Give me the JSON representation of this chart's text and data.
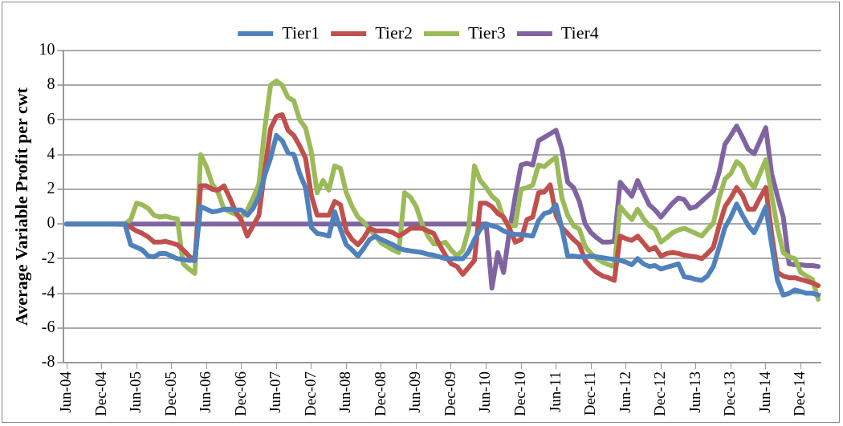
{
  "chart_data": {
    "type": "line",
    "ylabel": "Average Variable Profit per cwt",
    "legend": "top",
    "grid": "y",
    "marker": "none",
    "line_style": "solid",
    "ylim": [
      -8,
      10
    ],
    "yticks": [
      -8,
      -6,
      -4,
      -2,
      0,
      2,
      4,
      6,
      8,
      10
    ],
    "categories": [
      "Jun-04",
      null,
      null,
      null,
      null,
      null,
      "Dec-04",
      null,
      null,
      null,
      null,
      null,
      "Jun-05",
      null,
      null,
      null,
      null,
      null,
      "Dec-05",
      null,
      null,
      null,
      null,
      null,
      "Jun-06",
      null,
      null,
      null,
      null,
      null,
      "Dec-06",
      null,
      null,
      null,
      null,
      null,
      "Jun-07",
      null,
      null,
      null,
      null,
      null,
      "Dec-07",
      null,
      null,
      null,
      null,
      null,
      "Jun-08",
      null,
      null,
      null,
      null,
      null,
      "Dec-08",
      null,
      null,
      null,
      null,
      null,
      "Jun-09",
      null,
      null,
      null,
      null,
      null,
      "Dec-09",
      null,
      null,
      null,
      null,
      null,
      "Jun-10",
      null,
      null,
      null,
      null,
      null,
      "Dec-10",
      null,
      null,
      null,
      null,
      null,
      "Jun-11",
      null,
      null,
      null,
      null,
      null,
      "Dec-11",
      null,
      null,
      null,
      null,
      null,
      "Jun-12",
      null,
      null,
      null,
      null,
      null,
      "Dec-12",
      null,
      null,
      null,
      null,
      null,
      "Jun-13",
      null,
      null,
      null,
      null,
      null,
      "Dec-13",
      null,
      null,
      null,
      null,
      null,
      "Jun-14",
      null,
      null,
      null,
      null,
      null,
      "Dec-14",
      null,
      null,
      null
    ],
    "series": [
      {
        "name": "Tier1",
        "color": "#4f81bd",
        "values": [
          0,
          0,
          0,
          0,
          0,
          0,
          0,
          0,
          0,
          0,
          0,
          -1.2,
          -1.35,
          -1.5,
          -1.85,
          -1.9,
          -1.7,
          -1.7,
          -1.85,
          -2.0,
          -2.05,
          -2.1,
          -2.1,
          1.0,
          0.85,
          0.7,
          0.75,
          0.85,
          0.85,
          0.8,
          0.8,
          0.5,
          0.9,
          1.6,
          2.8,
          3.8,
          5.1,
          4.8,
          4.1,
          4.0,
          2.9,
          2.1,
          -0.2,
          -0.55,
          -0.6,
          -0.7,
          0.7,
          -0.3,
          -1.2,
          -1.5,
          -1.85,
          -1.4,
          -0.9,
          -0.7,
          -0.9,
          -1.05,
          -1.2,
          -1.4,
          -1.5,
          -1.55,
          -1.6,
          -1.65,
          -1.75,
          -1.8,
          -1.9,
          -2.0,
          -2.0,
          -2.0,
          -2.0,
          -1.6,
          -0.9,
          -0.3,
          0,
          -0.1,
          -0.2,
          -0.4,
          -0.55,
          -0.6,
          -0.6,
          -0.65,
          -0.7,
          0.2,
          0.6,
          0.7,
          1.1,
          -0.25,
          -1.85,
          -1.85,
          -1.9,
          -1.9,
          -1.85,
          -1.9,
          -1.95,
          -2.0,
          -2.05,
          -2.1,
          -2.2,
          -2.35,
          -2.0,
          -2.3,
          -2.45,
          -2.4,
          -2.6,
          -2.5,
          -2.4,
          -2.3,
          -3.05,
          -3.1,
          -3.2,
          -3.25,
          -3.0,
          -2.45,
          -1.35,
          -0.2,
          0.4,
          1.15,
          0.5,
          -0.1,
          -0.5,
          0.2,
          1.0,
          -1.2,
          -3.25,
          -4.1,
          -4.0,
          -3.8,
          -3.9,
          -4.0,
          -4.0,
          -4.1
        ]
      },
      {
        "name": "Tier2",
        "color": "#c0504d",
        "values": [
          null,
          null,
          null,
          null,
          null,
          null,
          null,
          null,
          null,
          0,
          0,
          -0.2,
          -0.4,
          -0.55,
          -0.75,
          -1.05,
          -1.05,
          -1.0,
          -1.1,
          -1.2,
          -1.5,
          -1.85,
          -2.1,
          2.2,
          2.2,
          2.0,
          1.95,
          2.2,
          1.5,
          0.7,
          0.2,
          -0.7,
          -0.1,
          0.5,
          3.1,
          5.5,
          6.2,
          6.3,
          5.4,
          5.1,
          4.5,
          3.8,
          1.65,
          0.5,
          0.5,
          0.5,
          1.3,
          1.1,
          -0.4,
          -0.9,
          -1.2,
          -0.8,
          -0.25,
          -0.4,
          -0.4,
          -0.4,
          -0.5,
          -0.7,
          -0.5,
          -0.25,
          -0.25,
          -0.25,
          -0.4,
          -0.55,
          -1.2,
          -1.8,
          -2.3,
          -2.45,
          -2.9,
          -2.5,
          -2.1,
          1.2,
          1.2,
          1.0,
          0.6,
          0.4,
          -0.25,
          -1.05,
          -0.9,
          0.25,
          0.4,
          1.8,
          1.85,
          2.25,
          0.5,
          -0.2,
          -0.55,
          -0.9,
          -1.2,
          -2.1,
          -2.5,
          -2.8,
          -3.0,
          -3.1,
          -3.25,
          -0.7,
          -0.85,
          -0.95,
          -0.7,
          -1.1,
          -1.5,
          -1.35,
          -1.85,
          -1.7,
          -1.65,
          -1.7,
          -1.8,
          -1.85,
          -1.9,
          -2.0,
          -1.7,
          -1.35,
          -0.1,
          1.0,
          1.5,
          2.1,
          1.65,
          0.85,
          0.85,
          1.5,
          2.1,
          -0.55,
          -2.8,
          -3.0,
          -3.1,
          -3.1,
          -3.2,
          -3.3,
          -3.4,
          -3.55
        ]
      },
      {
        "name": "Tier3",
        "color": "#9bbb59",
        "values": [
          null,
          null,
          null,
          null,
          null,
          null,
          null,
          null,
          null,
          0,
          0,
          0.25,
          1.2,
          1.1,
          0.9,
          0.5,
          0.4,
          0.45,
          0.35,
          0.3,
          -2.3,
          -2.6,
          -2.85,
          4.0,
          3.3,
          2.3,
          1.8,
          0.85,
          0.7,
          0.55,
          0.4,
          0.8,
          1.5,
          2.3,
          5.5,
          8.0,
          8.25,
          8.0,
          7.3,
          7.1,
          6.0,
          5.55,
          4.15,
          1.8,
          2.5,
          1.95,
          3.35,
          3.2,
          1.8,
          1.0,
          0.4,
          0.1,
          -0.3,
          -0.7,
          -1.1,
          -1.3,
          -1.5,
          -1.65,
          1.8,
          1.55,
          1.0,
          0.0,
          -0.7,
          -1.15,
          -1.15,
          -1.05,
          -1.5,
          -1.85,
          -1.5,
          -0.3,
          3.35,
          2.5,
          2.1,
          1.6,
          1.3,
          0.3,
          -0.1,
          -0.1,
          2.0,
          2.1,
          2.25,
          3.4,
          3.3,
          3.6,
          3.85,
          1.5,
          0.5,
          -0.1,
          -0.3,
          -1.3,
          -1.7,
          -2.0,
          -2.2,
          -2.35,
          -2.45,
          1.0,
          0.6,
          0.25,
          0.85,
          0.3,
          -0.1,
          -0.3,
          -1.05,
          -0.8,
          -0.5,
          -0.35,
          -0.25,
          -0.4,
          -0.55,
          -0.7,
          -0.3,
          0.05,
          1.5,
          2.6,
          2.9,
          3.6,
          3.3,
          2.5,
          2.1,
          2.9,
          3.7,
          1.65,
          -0.2,
          -1.65,
          -1.9,
          -2.0,
          -2.8,
          -3.0,
          -3.2,
          -4.35
        ]
      },
      {
        "name": "Tier4",
        "color": "#8064a2",
        "values": [
          0,
          0,
          0,
          0,
          0,
          0,
          0,
          0,
          0,
          0,
          0,
          0,
          0,
          0,
          0,
          0,
          0,
          0,
          0,
          0,
          0,
          0,
          0,
          0,
          0,
          0,
          0,
          0,
          0,
          0,
          0,
          0,
          0,
          0,
          0,
          0,
          0,
          0,
          0,
          0,
          0,
          0,
          0,
          0,
          0,
          0,
          0,
          0,
          0,
          0,
          0,
          0,
          0,
          0,
          0,
          0,
          0,
          0,
          0,
          0,
          0,
          0,
          0,
          0,
          0,
          0,
          0,
          0,
          0,
          0,
          0,
          0,
          0,
          -3.7,
          -1.65,
          -2.8,
          -0.4,
          1.6,
          3.4,
          3.5,
          3.4,
          4.8,
          5.0,
          5.2,
          5.4,
          4.3,
          2.4,
          2.1,
          1.3,
          0,
          -0.5,
          -0.8,
          -1.05,
          -1.05,
          -1.0,
          2.4,
          2.0,
          1.6,
          2.5,
          1.8,
          1.1,
          0.8,
          0.4,
          0.8,
          1.2,
          1.5,
          1.4,
          0.9,
          1.0,
          1.3,
          1.6,
          1.9,
          3.0,
          4.6,
          5.1,
          5.65,
          5.0,
          4.3,
          4.05,
          4.8,
          5.55,
          2.9,
          1.6,
          0.4,
          -2.3,
          -2.35,
          -2.35,
          -2.4,
          -2.4,
          -2.45
        ]
      }
    ]
  }
}
